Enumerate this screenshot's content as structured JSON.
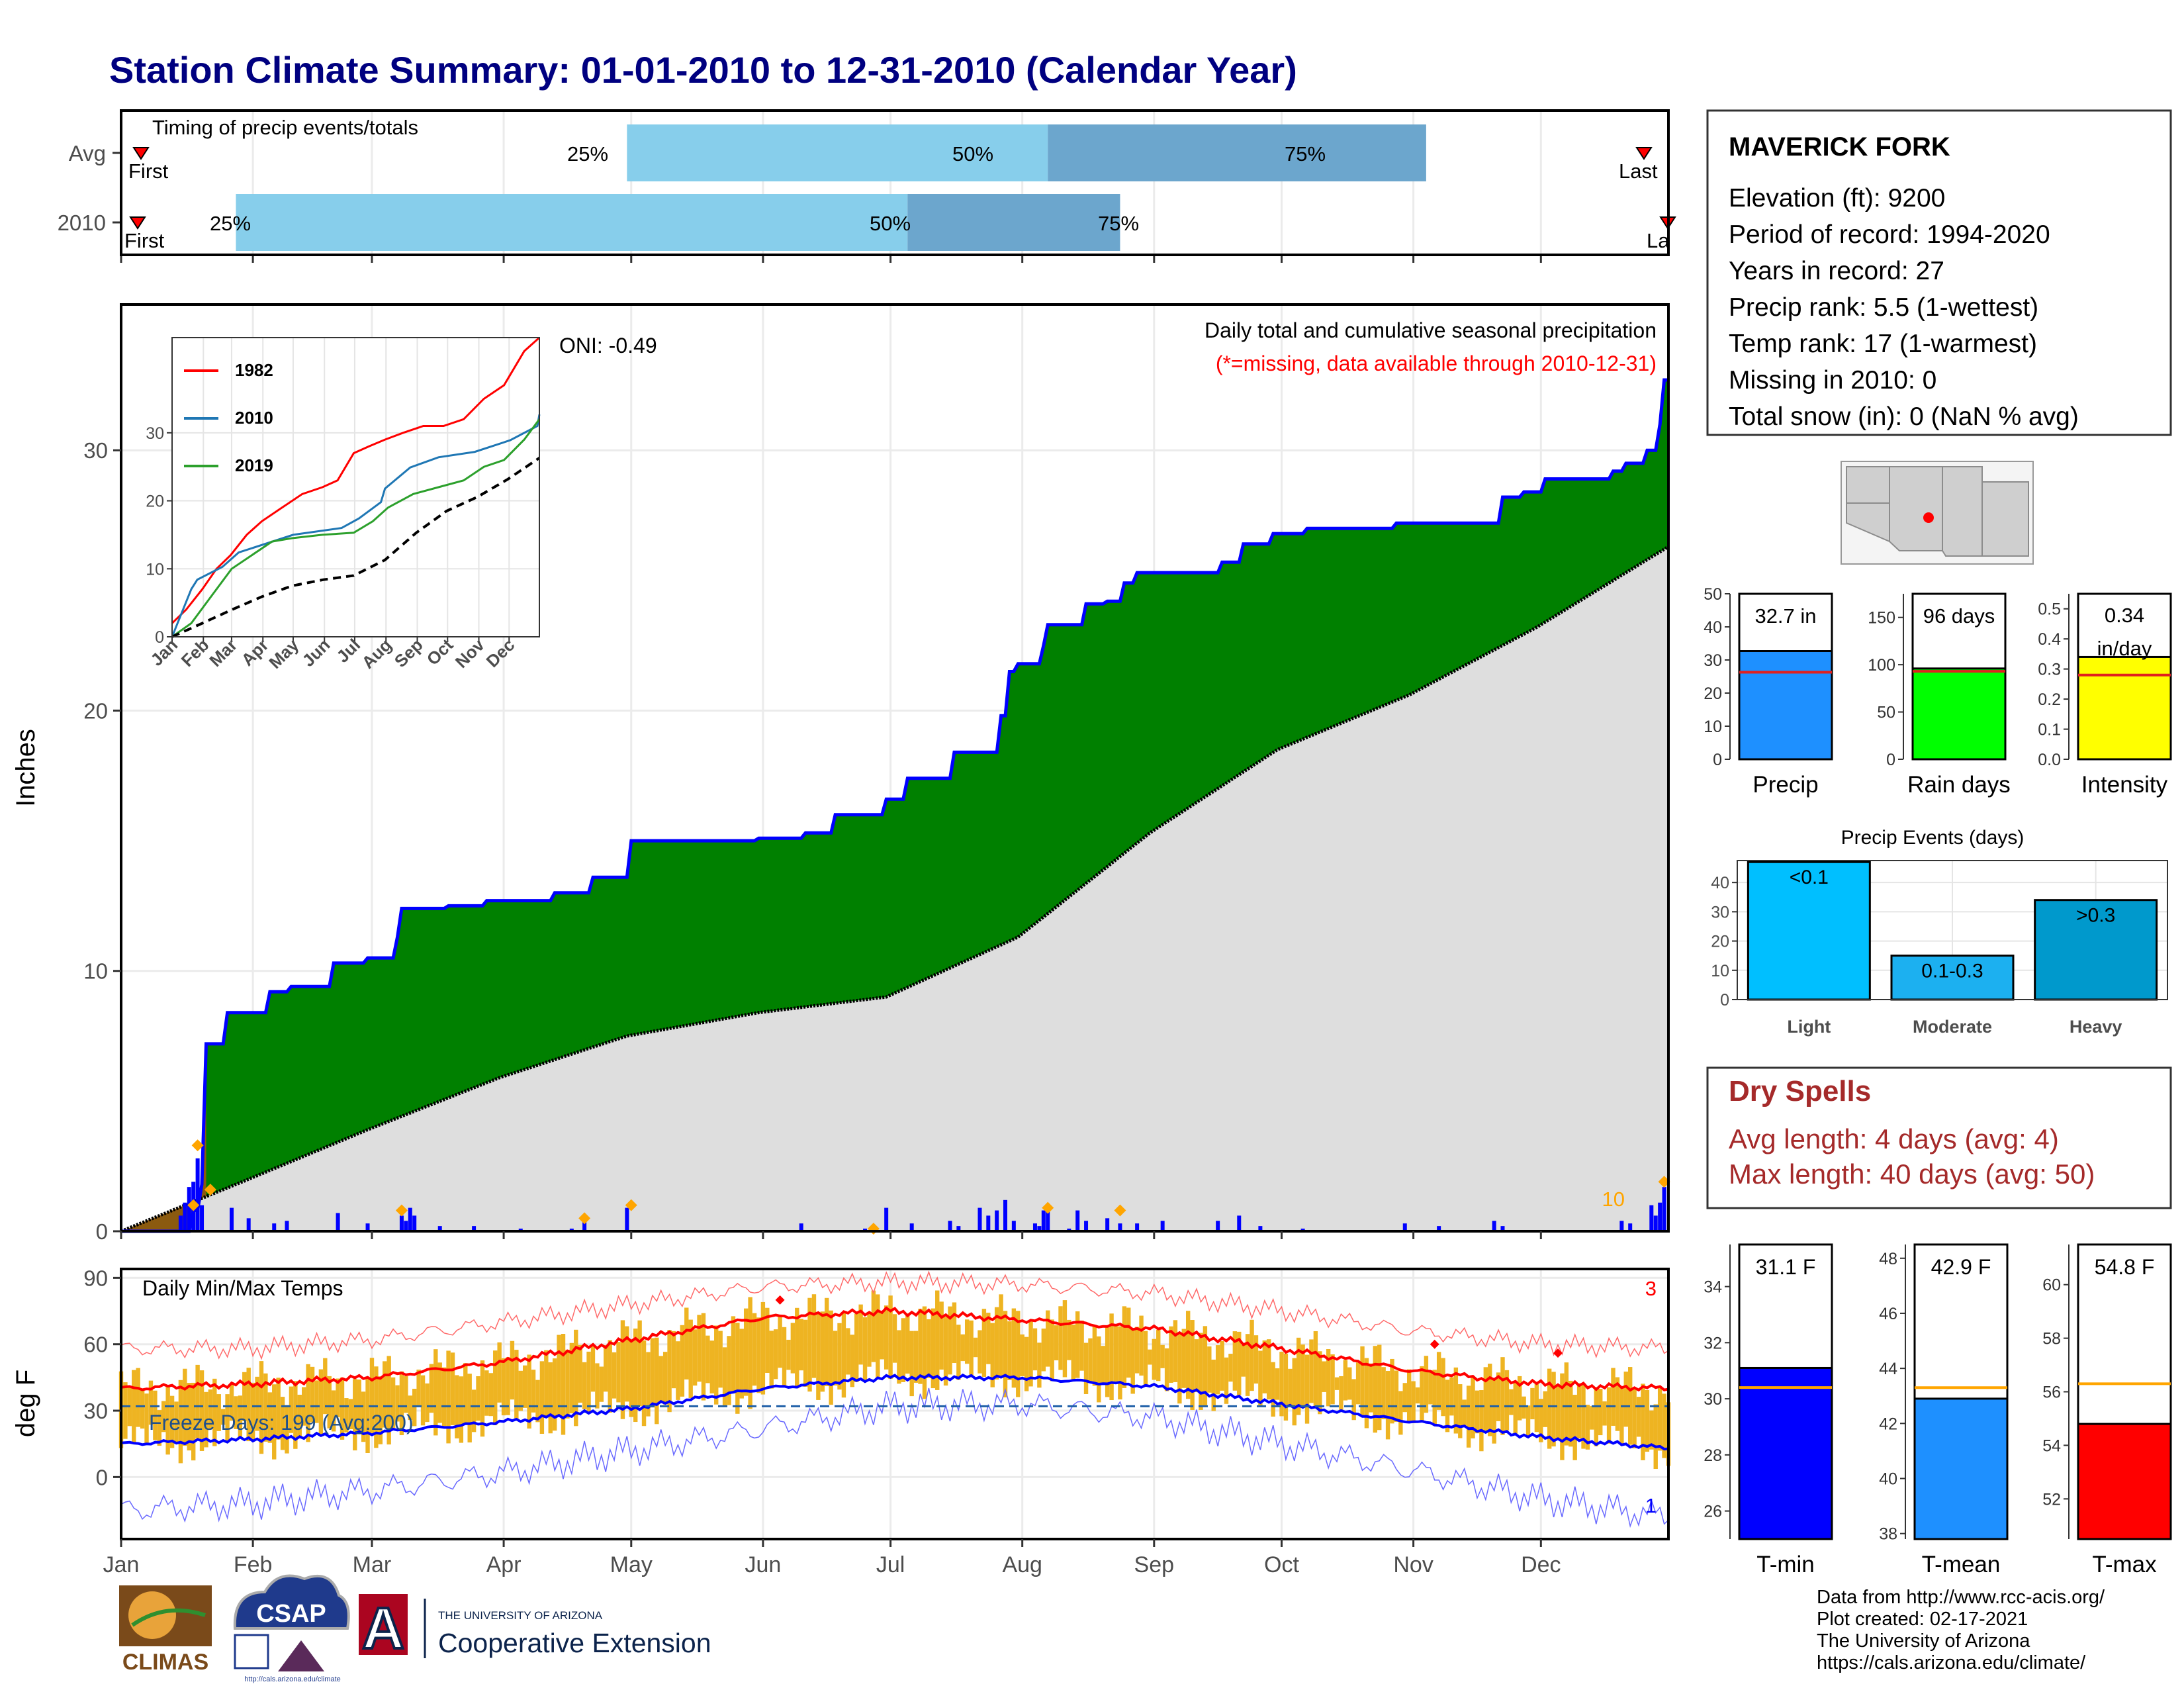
{
  "title": "Station Climate Summary: 01-01-2010 to 12-31-2010 (Calendar Year)",
  "colors": {
    "title": "#000080",
    "green": "#008000",
    "normal": "#dedede",
    "blue": "#0000ff",
    "gold": "#eeb422",
    "red": "#ff0000",
    "light_blue": "#87ceeb",
    "mid_blue": "#6ca6cd",
    "dry": "#a52a2a"
  },
  "timing": {
    "title": "Timing of precip events/totals",
    "rows": [
      {
        "label": "Avg",
        "first_day": 1,
        "q25": 120,
        "q50": 219,
        "q75": 308,
        "last_day": 365
      },
      {
        "label": "2010",
        "first_day": 1,
        "q25": 28,
        "q50": 186,
        "q75": 236,
        "last_day": 365
      }
    ],
    "labels": {
      "first": "First",
      "last": "Last",
      "last_clipped": "La",
      "p25": "25%",
      "p50": "50%",
      "p75": "75%"
    }
  },
  "station": {
    "name": "MAVERICK FORK",
    "lines": [
      "Elevation (ft): 9200",
      "Period of record: 1994-2020",
      "Years in record: 27",
      "Precip rank: 5.5 (1-wettest)",
      "Temp rank: 17 (1-warmest)",
      "Missing in 2010: 0",
      "Total snow (in): 0 (NaN % avg)"
    ]
  },
  "months": [
    "Jan",
    "Feb",
    "Mar",
    "Apr",
    "May",
    "Jun",
    "Jul",
    "Aug",
    "Sep",
    "Oct",
    "Nov",
    "Dec"
  ],
  "month_starts": [
    1,
    32,
    60,
    91,
    121,
    152,
    182,
    213,
    244,
    274,
    305,
    335
  ],
  "main_precip": {
    "ylabel": "Inches",
    "yticks": [
      0,
      10,
      20,
      30
    ],
    "oni": "ONI: -0.49",
    "subtitle": "Daily total and cumulative seasonal precipitation",
    "missing_note": "(*=missing, data available through 2010-12-31)",
    "extreme_count": "10",
    "cumulative_2010": [
      [
        1,
        0
      ],
      [
        18,
        0.8
      ],
      [
        20,
        1.8
      ],
      [
        21,
        7.2
      ],
      [
        26,
        8.4
      ],
      [
        36,
        9.2
      ],
      [
        41,
        9.4
      ],
      [
        51,
        10.3
      ],
      [
        59,
        10.5
      ],
      [
        66,
        11.3
      ],
      [
        67,
        12.4
      ],
      [
        78,
        12.5
      ],
      [
        87,
        12.7
      ],
      [
        103,
        13.0
      ],
      [
        112,
        13.6
      ],
      [
        121,
        15.0
      ],
      [
        151,
        15.1
      ],
      [
        162,
        15.3
      ],
      [
        169,
        16.0
      ],
      [
        181,
        16.6
      ],
      [
        186,
        17.4
      ],
      [
        197,
        18.4
      ],
      [
        208,
        19.8
      ],
      [
        210,
        21.5
      ],
      [
        212,
        21.8
      ],
      [
        218,
        22.5
      ],
      [
        219,
        23.3
      ],
      [
        228,
        24.1
      ],
      [
        233,
        24.2
      ],
      [
        237,
        24.9
      ],
      [
        240,
        25.3
      ],
      [
        260,
        25.7
      ],
      [
        265,
        26.4
      ],
      [
        272,
        26.8
      ],
      [
        280,
        27.0
      ],
      [
        301,
        27.2
      ],
      [
        326,
        28.2
      ],
      [
        331,
        28.4
      ],
      [
        336,
        28.9
      ],
      [
        352,
        29.2
      ],
      [
        355,
        29.5
      ],
      [
        360,
        30.0
      ],
      [
        363,
        31.0
      ],
      [
        364,
        32.7
      ],
      [
        365,
        32.7
      ]
    ],
    "normal_cumulative": [
      [
        1,
        0
      ],
      [
        31,
        2.0
      ],
      [
        59,
        3.9
      ],
      [
        90,
        5.9
      ],
      [
        120,
        7.5
      ],
      [
        151,
        8.4
      ],
      [
        181,
        9.0
      ],
      [
        212,
        11.3
      ],
      [
        243,
        15.3
      ],
      [
        273,
        18.5
      ],
      [
        304,
        20.6
      ],
      [
        334,
        23.2
      ],
      [
        365,
        26.3
      ]
    ],
    "daily_bars": [
      [
        15,
        0.6
      ],
      [
        16,
        1.1
      ],
      [
        17,
        1.7
      ],
      [
        18,
        1.9
      ],
      [
        19,
        2.8
      ],
      [
        20,
        1.0
      ],
      [
        27,
        0.9
      ],
      [
        31,
        0.5
      ],
      [
        37,
        0.3
      ],
      [
        40,
        0.4
      ],
      [
        52,
        0.7
      ],
      [
        59,
        0.3
      ],
      [
        67,
        0.6
      ],
      [
        68,
        0.4
      ],
      [
        69,
        0.9
      ],
      [
        70,
        0.6
      ],
      [
        76,
        0.2
      ],
      [
        84,
        0.2
      ],
      [
        95,
        0.1
      ],
      [
        107,
        0.1
      ],
      [
        110,
        0.5
      ],
      [
        120,
        0.9
      ],
      [
        161,
        0.3
      ],
      [
        176,
        0.1
      ],
      [
        178,
        0.2
      ],
      [
        181,
        0.9
      ],
      [
        187,
        0.3
      ],
      [
        196,
        0.4
      ],
      [
        198,
        0.2
      ],
      [
        203,
        0.9
      ],
      [
        205,
        0.6
      ],
      [
        207,
        0.8
      ],
      [
        209,
        1.2
      ],
      [
        211,
        0.4
      ],
      [
        216,
        0.3
      ],
      [
        217,
        0.2
      ],
      [
        218,
        0.8
      ],
      [
        219,
        0.9
      ],
      [
        224,
        0.1
      ],
      [
        226,
        0.8
      ],
      [
        228,
        0.4
      ],
      [
        233,
        0.5
      ],
      [
        236,
        0.3
      ],
      [
        240,
        0.3
      ],
      [
        246,
        0.4
      ],
      [
        259,
        0.4
      ],
      [
        264,
        0.6
      ],
      [
        269,
        0.2
      ],
      [
        279,
        0.1
      ],
      [
        303,
        0.3
      ],
      [
        311,
        0.2
      ],
      [
        324,
        0.4
      ],
      [
        326,
        0.2
      ],
      [
        354,
        0.4
      ],
      [
        356,
        0.3
      ],
      [
        361,
        1.0
      ],
      [
        362,
        0.6
      ],
      [
        363,
        1.1
      ],
      [
        364,
        1.7
      ]
    ],
    "extreme_markers": [
      [
        18,
        1.0
      ],
      [
        19,
        3.3
      ],
      [
        22,
        1.6
      ],
      [
        67,
        0.8
      ],
      [
        110,
        0.5
      ],
      [
        121,
        1.0
      ],
      [
        178,
        0.1
      ],
      [
        219,
        0.9
      ],
      [
        236,
        0.8
      ],
      [
        364,
        1.9
      ]
    ]
  },
  "inset": {
    "series": [
      {
        "name": "1982",
        "color": "#ff0000",
        "points": [
          [
            1,
            2
          ],
          [
            15,
            4
          ],
          [
            31,
            7
          ],
          [
            45,
            10
          ],
          [
            59,
            12
          ],
          [
            75,
            15
          ],
          [
            90,
            17
          ],
          [
            110,
            19
          ],
          [
            130,
            21
          ],
          [
            150,
            22
          ],
          [
            165,
            23
          ],
          [
            181,
            27
          ],
          [
            196,
            28
          ],
          [
            212,
            29
          ],
          [
            230,
            30
          ],
          [
            250,
            31
          ],
          [
            270,
            31
          ],
          [
            290,
            32
          ],
          [
            310,
            35
          ],
          [
            330,
            37
          ],
          [
            350,
            42
          ],
          [
            365,
            44
          ]
        ]
      },
      {
        "name": "2010",
        "color": "#1f77b4",
        "points": [
          [
            1,
            0
          ],
          [
            20,
            7
          ],
          [
            26,
            8.4
          ],
          [
            51,
            10.3
          ],
          [
            67,
            12.4
          ],
          [
            121,
            15.0
          ],
          [
            169,
            16.0
          ],
          [
            186,
            17.4
          ],
          [
            208,
            19.8
          ],
          [
            212,
            21.8
          ],
          [
            237,
            24.9
          ],
          [
            265,
            26.4
          ],
          [
            301,
            27.2
          ],
          [
            336,
            28.9
          ],
          [
            363,
            31.0
          ],
          [
            365,
            32.7
          ]
        ]
      },
      {
        "name": "2019",
        "color": "#2ca02c",
        "points": [
          [
            1,
            0
          ],
          [
            20,
            2
          ],
          [
            40,
            6
          ],
          [
            60,
            10
          ],
          [
            80,
            12
          ],
          [
            100,
            14
          ],
          [
            120,
            14.5
          ],
          [
            150,
            15
          ],
          [
            181,
            15.3
          ],
          [
            200,
            17
          ],
          [
            215,
            19
          ],
          [
            240,
            21
          ],
          [
            265,
            22
          ],
          [
            290,
            23
          ],
          [
            310,
            25
          ],
          [
            330,
            26
          ],
          [
            350,
            29
          ],
          [
            365,
            32
          ]
        ]
      },
      {
        "name": "",
        "color": "#000000",
        "dashed": true,
        "points": [
          [
            1,
            0
          ],
          [
            31,
            2.0
          ],
          [
            59,
            3.9
          ],
          [
            90,
            5.9
          ],
          [
            120,
            7.5
          ],
          [
            151,
            8.4
          ],
          [
            181,
            9.0
          ],
          [
            212,
            11.3
          ],
          [
            243,
            15.3
          ],
          [
            273,
            18.5
          ],
          [
            304,
            20.6
          ],
          [
            334,
            23.2
          ],
          [
            365,
            26.3
          ]
        ]
      }
    ],
    "yticks": [
      0,
      10,
      20,
      30
    ],
    "xlabels": [
      "Jan",
      "Feb",
      "Mar",
      "Apr",
      "May",
      "Jun",
      "Jul",
      "Aug",
      "Sep",
      "Oct",
      "Nov",
      "Dec"
    ]
  },
  "temps": {
    "ylabel": "deg F",
    "title": "Daily Min/Max Temps",
    "yticks": [
      0,
      30,
      60,
      90
    ],
    "freeze_label": "Freeze Days: 199 (Avg:200)",
    "freeze_line": 32,
    "max_record_count": "3",
    "min_record_count": "1",
    "avg_max": [
      [
        1,
        40
      ],
      [
        31,
        42
      ],
      [
        60,
        45
      ],
      [
        91,
        52
      ],
      [
        121,
        62
      ],
      [
        152,
        72
      ],
      [
        182,
        75
      ],
      [
        213,
        71
      ],
      [
        244,
        67
      ],
      [
        274,
        58
      ],
      [
        305,
        48
      ],
      [
        335,
        42
      ],
      [
        365,
        40
      ]
    ],
    "avg_min": [
      [
        1,
        15
      ],
      [
        31,
        17
      ],
      [
        60,
        20
      ],
      [
        91,
        25
      ],
      [
        121,
        31
      ],
      [
        152,
        40
      ],
      [
        182,
        45
      ],
      [
        213,
        45
      ],
      [
        244,
        41
      ],
      [
        274,
        33
      ],
      [
        305,
        25
      ],
      [
        335,
        18
      ],
      [
        365,
        13
      ]
    ],
    "record_max": [
      [
        1,
        58
      ],
      [
        31,
        58
      ],
      [
        60,
        62
      ],
      [
        91,
        70
      ],
      [
        121,
        78
      ],
      [
        152,
        86
      ],
      [
        182,
        88
      ],
      [
        213,
        87
      ],
      [
        244,
        83
      ],
      [
        274,
        75
      ],
      [
        305,
        66
      ],
      [
        335,
        60
      ],
      [
        365,
        58
      ]
    ],
    "record_min": [
      [
        1,
        -15
      ],
      [
        31,
        -12
      ],
      [
        60,
        -6
      ],
      [
        91,
        2
      ],
      [
        121,
        12
      ],
      [
        152,
        22
      ],
      [
        182,
        32
      ],
      [
        213,
        33
      ],
      [
        244,
        27
      ],
      [
        274,
        15
      ],
      [
        305,
        3
      ],
      [
        335,
        -10
      ],
      [
        365,
        -18
      ]
    ],
    "record_markers": [
      [
        156,
        80
      ],
      [
        310,
        60
      ],
      [
        339,
        56
      ]
    ]
  },
  "summary_bars": {
    "precip": {
      "label": "Precip",
      "value_text": "32.7 in",
      "value": 32.7,
      "avg": 26.3,
      "ymax": 50,
      "yticks": [
        0,
        10,
        20,
        30,
        40,
        50
      ]
    },
    "rain_days": {
      "label": "Rain days",
      "value_text": "96 days",
      "value": 96,
      "avg": 93,
      "ymax": 175,
      "yticks": [
        0,
        50,
        100,
        150
      ]
    },
    "intensity": {
      "label": "Intensity",
      "value_text": "0.34 in/day",
      "value": 0.34,
      "avg": 0.28,
      "ymax": 0.55,
      "yticks": [
        0.0,
        0.1,
        0.2,
        0.3,
        0.4,
        0.5
      ]
    }
  },
  "events": {
    "title": "Precip Events (days)",
    "yticks": [
      0,
      10,
      20,
      30,
      40
    ],
    "bars": [
      {
        "category": "Light",
        "label": "<0.1",
        "value": 47,
        "color": "#00bfff"
      },
      {
        "category": "Moderate",
        "label": "0.1-0.3",
        "value": 15,
        "color": "#1cb0f0"
      },
      {
        "category": "Heavy",
        "label": ">0.3",
        "value": 34,
        "color": "#0099cc"
      }
    ]
  },
  "dry_spells": {
    "title": "Dry Spells",
    "avg": "Avg length: 4 days (avg: 4)",
    "max": "Max length: 40 days (avg: 50)"
  },
  "temp_bars": [
    {
      "label": "T-min",
      "value_text": "31.1 F",
      "value": 31.1,
      "avg": 30.4,
      "ymin": 25,
      "ymax": 35.5,
      "yticks": [
        26,
        28,
        30,
        32,
        34
      ],
      "color": "#0000ff"
    },
    {
      "label": "T-mean",
      "value_text": "42.9 F",
      "value": 42.9,
      "avg": 43.3,
      "ymin": 37.8,
      "ymax": 48.5,
      "yticks": [
        38,
        40,
        42,
        44,
        46,
        48
      ],
      "color": "#1e90ff"
    },
    {
      "label": "T-max",
      "value_text": "54.8 F",
      "value": 54.8,
      "avg": 56.3,
      "ymin": 50.5,
      "ymax": 61.5,
      "yticks": [
        52,
        54,
        56,
        58,
        60
      ],
      "color": "#ff0000"
    }
  ],
  "footer": {
    "lines": [
      "Data from http://www.rcc-acis.org/",
      "Plot created: 02-17-2021",
      "The University of Arizona",
      "https://cals.arizona.edu/climate/"
    ],
    "logo_climas": "CLIMAS",
    "logo_csap": "CSAP",
    "logo_csap_url": "http://cals.arizona.edu/climate",
    "ua_small": "THE UNIVERSITY OF ARIZONA",
    "ua_big": "Cooperative Extension",
    "ua_letter": "A"
  }
}
